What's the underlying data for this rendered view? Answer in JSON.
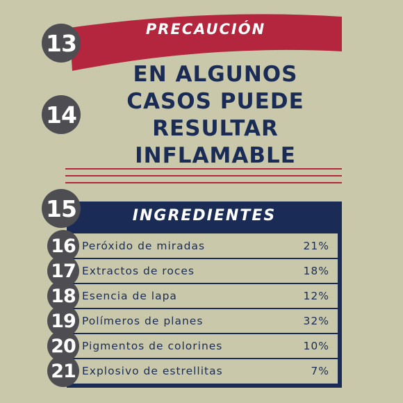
{
  "numbers": {
    "n13": "13",
    "n14": "14",
    "n15": "15"
  },
  "banner": {
    "label": "PRECAUCIÓN",
    "color": "#b3263d"
  },
  "warning": {
    "lines": [
      "EN ALGUNOS",
      "CASOS PUEDE",
      "RESULTAR",
      "INFLAMABLE"
    ]
  },
  "ingredients": {
    "title": "INGREDIENTES",
    "rows": [
      {
        "num": "16",
        "name": "Peróxido de miradas",
        "pct": "21%"
      },
      {
        "num": "17",
        "name": "Extractos de roces",
        "pct": "18%"
      },
      {
        "num": "18",
        "name": "Esencia de lapa",
        "pct": "12%"
      },
      {
        "num": "19",
        "name": "Polímeros de planes",
        "pct": "32%"
      },
      {
        "num": "20",
        "name": "Pigmentos de colorines",
        "pct": "10%"
      },
      {
        "num": "21",
        "name": "Explosivo de estrellitas",
        "pct": "7%"
      }
    ]
  },
  "colors": {
    "background": "#c9c8ab",
    "navy": "#1a2c55",
    "red": "#b3263d",
    "circle": "#4e4d52"
  }
}
